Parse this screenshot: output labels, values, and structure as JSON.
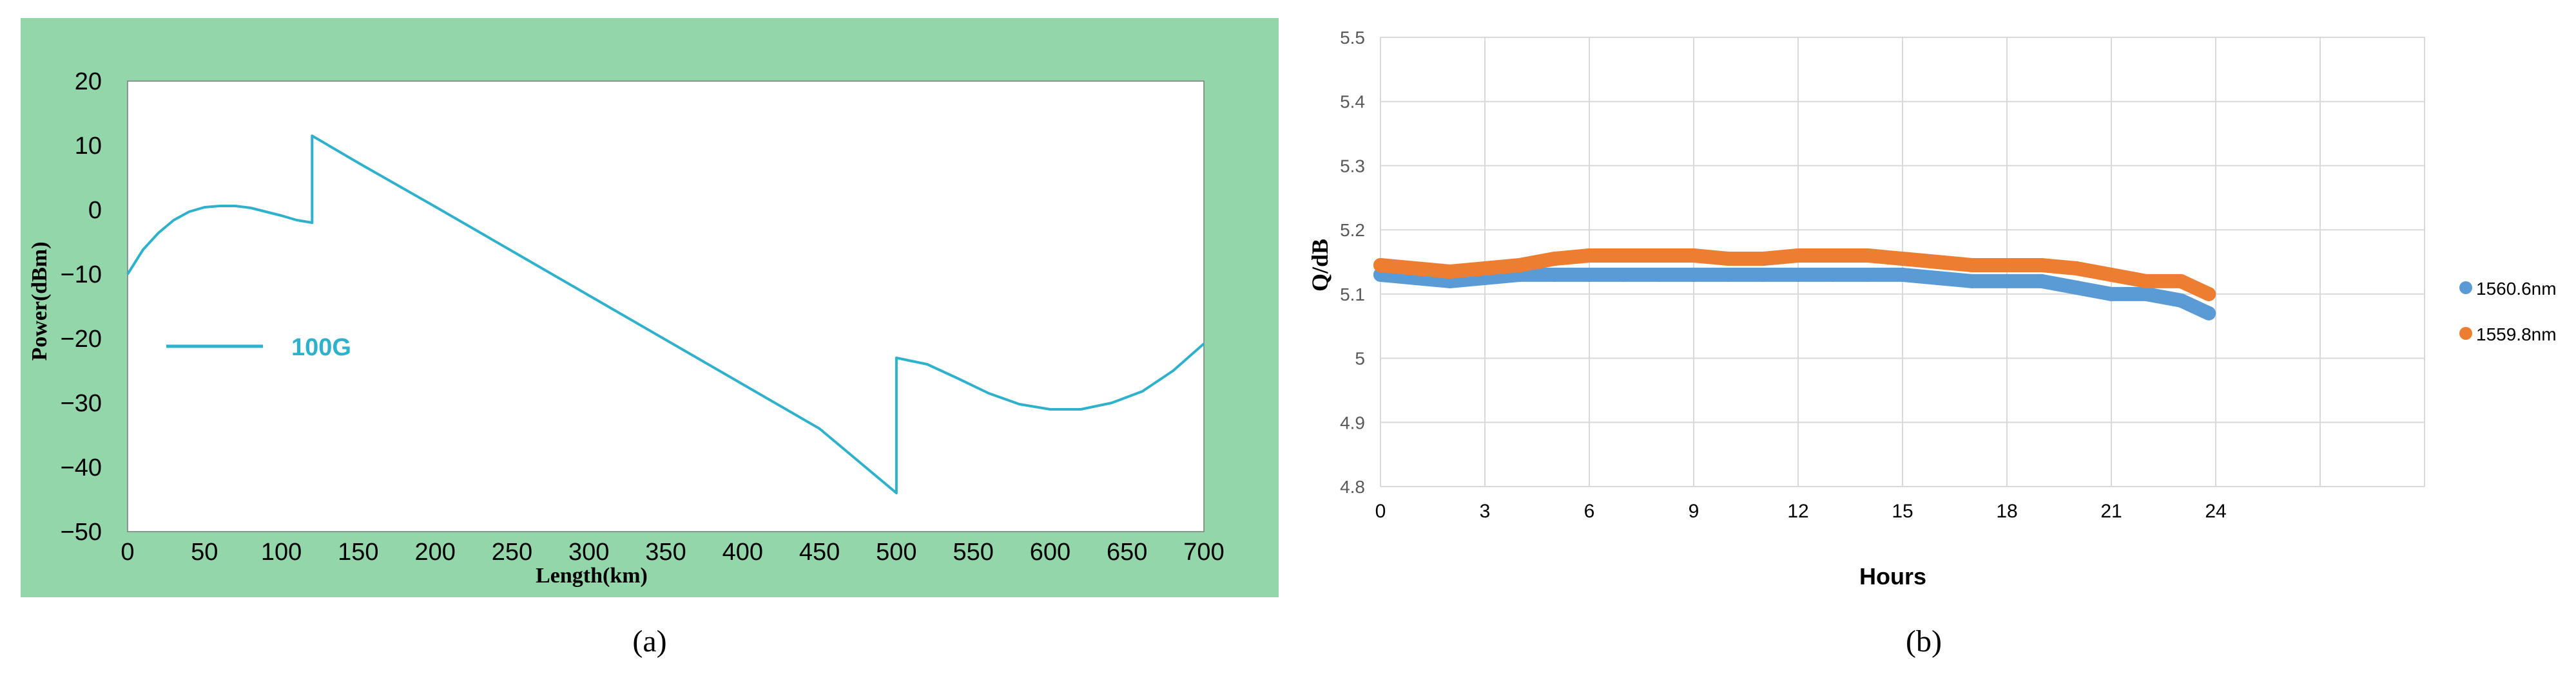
{
  "panels": {
    "a_caption": "(a)",
    "b_caption": "(b)"
  },
  "colors": {
    "panel_a_background": "#93d6a9",
    "panel_a_plot_background": "#ffffff",
    "panel_a_line": "#2fb1cc",
    "panel_a_label_text": "#2fb1cc",
    "series_1560": "#5b9bd5",
    "series_1559": "#ed7d31",
    "gridline": "#d9d9d9",
    "text": "#000000",
    "axis_text": "#595959"
  },
  "chart_data": [
    {
      "type": "line",
      "panel": "a",
      "title": "",
      "xlabel": "Length(km)",
      "ylabel": "Power(dBm)",
      "xlim": [
        0,
        700
      ],
      "ylim": [
        -50,
        20
      ],
      "x_ticks": [
        "0",
        "50",
        "100",
        "150",
        "200",
        "250",
        "300",
        "350",
        "400",
        "450",
        "500",
        "550",
        "600",
        "650",
        "700"
      ],
      "y_ticks": [
        "20",
        "10",
        "0",
        "−10",
        "−20",
        "−30",
        "−40",
        "−50"
      ],
      "legend_position": "left-middle",
      "grid": false,
      "series": [
        {
          "name": "100G",
          "x": [
            0,
            10,
            20,
            30,
            40,
            50,
            60,
            70,
            80,
            90,
            100,
            110,
            120,
            120,
            150,
            200,
            250,
            300,
            350,
            400,
            450,
            500,
            500,
            520,
            540,
            560,
            580,
            600,
            620,
            640,
            660,
            680,
            700
          ],
          "y": [
            -10,
            -6.2,
            -3.6,
            -1.6,
            -0.3,
            0.4,
            0.6,
            0.6,
            0.3,
            -0.3,
            -0.9,
            -1.6,
            -2,
            11.5,
            7.3,
            0.5,
            -6.4,
            -13.3,
            -20.2,
            -27.1,
            -34,
            -44,
            -23,
            -24,
            -26.2,
            -28.5,
            -30.2,
            -31,
            -31,
            -30,
            -28.2,
            -25,
            -20.8
          ]
        }
      ]
    },
    {
      "type": "scatter",
      "panel": "b",
      "title": "",
      "xlabel": "Hours",
      "ylabel": "Q/dB",
      "xlim": [
        0,
        30
      ],
      "ylim": [
        4.8,
        5.5
      ],
      "x_ticks": [
        "0",
        "3",
        "6",
        "9",
        "12",
        "15",
        "18",
        "21",
        "24"
      ],
      "y_ticks": [
        "5.5",
        "5.4",
        "5.3",
        "5.2",
        "5.1",
        "5",
        "4.9",
        "4.8"
      ],
      "grid": true,
      "legend_position": "right",
      "series": [
        {
          "name": "1560.6nm",
          "x": [
            0,
            1,
            2,
            3,
            4,
            5,
            6,
            7,
            8,
            9,
            10,
            11,
            12,
            13,
            14,
            15,
            16,
            17,
            18,
            19,
            20,
            21,
            22,
            23,
            23.8
          ],
          "y": [
            5.13,
            5.125,
            5.12,
            5.125,
            5.13,
            5.13,
            5.13,
            5.13,
            5.13,
            5.13,
            5.13,
            5.13,
            5.13,
            5.13,
            5.13,
            5.13,
            5.125,
            5.12,
            5.12,
            5.12,
            5.11,
            5.1,
            5.1,
            5.09,
            5.07
          ]
        },
        {
          "name": "1559.8nm",
          "x": [
            0,
            1,
            2,
            3,
            4,
            5,
            6,
            7,
            8,
            9,
            10,
            11,
            12,
            13,
            14,
            15,
            16,
            17,
            18,
            19,
            20,
            21,
            22,
            23,
            23.8
          ],
          "y": [
            5.145,
            5.14,
            5.135,
            5.14,
            5.145,
            5.155,
            5.16,
            5.16,
            5.16,
            5.16,
            5.155,
            5.155,
            5.16,
            5.16,
            5.16,
            5.155,
            5.15,
            5.145,
            5.145,
            5.145,
            5.14,
            5.13,
            5.12,
            5.12,
            5.1
          ]
        }
      ]
    }
  ]
}
